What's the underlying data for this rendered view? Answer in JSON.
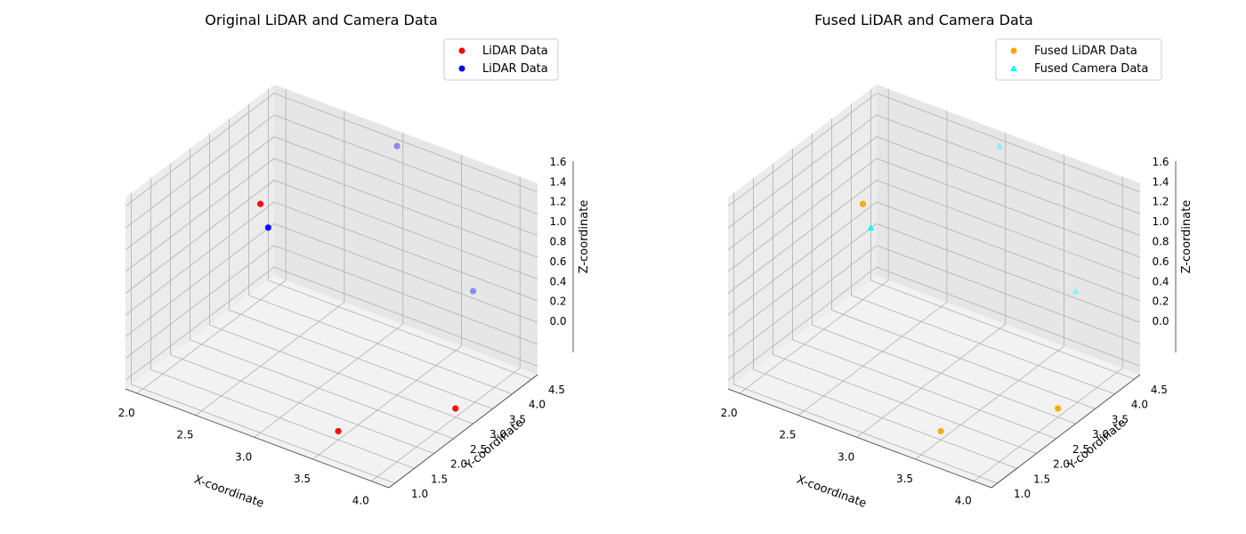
{
  "chart_data": [
    {
      "type": "scatter",
      "title": "Original LiDAR and Camera Data",
      "xlabel": "X-coordinate",
      "ylabel": "Y-coordinate",
      "zlabel": "Z-coordinate",
      "xlim": [
        1.9,
        4.15
      ],
      "ylim": [
        0.85,
        4.65
      ],
      "zlim": [
        -0.08,
        1.68
      ],
      "xticks": [
        "2.0",
        "2.5",
        "3.0",
        "3.5",
        "4.0"
      ],
      "yticks": [
        "1.0",
        "1.5",
        "2.0",
        "2.5",
        "3.0",
        "3.5",
        "4.0",
        "4.5"
      ],
      "zticks": [
        "0.0",
        "0.2",
        "0.4",
        "0.6",
        "0.8",
        "1.0",
        "1.2",
        "1.4",
        "1.6"
      ],
      "grid": true,
      "legend_position": "top-right",
      "series": [
        {
          "name": "LiDAR Data",
          "color": "#ff0000",
          "marker": "circle",
          "points": [
            {
              "x": 2.0,
              "y": 4.0,
              "z": 0.8
            },
            {
              "x": 3.5,
              "y": 1.5,
              "z": 0.0
            },
            {
              "x": 4.0,
              "y": 3.0,
              "z": 0.0
            }
          ]
        },
        {
          "name": "LiDAR Data",
          "color": "#0000ff",
          "marker": "circle",
          "points": [
            {
              "x": 2.1,
              "y": 3.9,
              "z": 0.65
            },
            {
              "x": 3.0,
              "y": 4.5,
              "z": 1.6
            },
            {
              "x": 3.75,
              "y": 4.2,
              "z": 0.65
            }
          ]
        }
      ]
    },
    {
      "type": "scatter",
      "title": "Fused LiDAR and Camera Data",
      "xlabel": "X-coordinate",
      "ylabel": "Y-coordinate",
      "zlabel": "Z-coordinate",
      "xlim": [
        1.9,
        4.15
      ],
      "ylim": [
        0.85,
        4.65
      ],
      "zlim": [
        -0.08,
        1.68
      ],
      "xticks": [
        "2.0",
        "2.5",
        "3.0",
        "3.5",
        "4.0"
      ],
      "yticks": [
        "1.0",
        "1.5",
        "2.0",
        "2.5",
        "3.0",
        "3.5",
        "4.0",
        "4.5"
      ],
      "zticks": [
        "0.0",
        "0.2",
        "0.4",
        "0.6",
        "0.8",
        "1.0",
        "1.2",
        "1.4",
        "1.6"
      ],
      "grid": true,
      "legend_position": "top-right",
      "series": [
        {
          "name": "Fused LiDAR Data",
          "color": "#ffa500",
          "marker": "circle",
          "points": [
            {
              "x": 2.0,
              "y": 4.0,
              "z": 0.8
            },
            {
              "x": 3.5,
              "y": 1.5,
              "z": 0.0
            },
            {
              "x": 4.0,
              "y": 3.0,
              "z": 0.0
            }
          ]
        },
        {
          "name": "Fused Camera Data",
          "color": "#00ffff",
          "marker": "triangle",
          "points": [
            {
              "x": 2.1,
              "y": 3.9,
              "z": 0.65
            },
            {
              "x": 3.0,
              "y": 4.5,
              "z": 1.6
            },
            {
              "x": 3.75,
              "y": 4.2,
              "z": 0.65
            }
          ]
        }
      ]
    }
  ]
}
